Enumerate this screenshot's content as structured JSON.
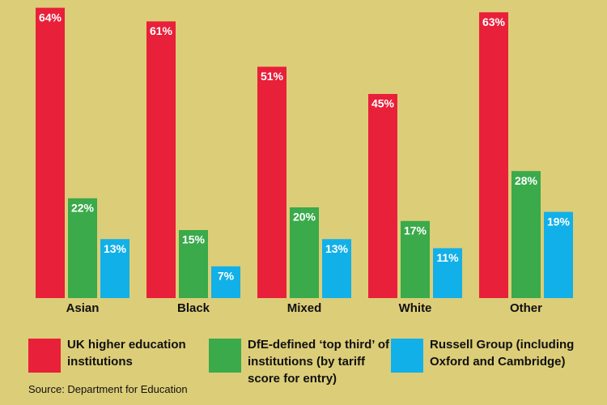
{
  "chart_data": {
    "type": "bar",
    "categories": [
      "Asian",
      "Black",
      "Mixed",
      "White",
      "Other"
    ],
    "series": [
      {
        "name": "UK higher education institutions",
        "color": "#e8203a",
        "values": [
          64,
          61,
          51,
          45,
          63
        ],
        "value_labels": [
          "64%",
          "61%",
          "51%",
          "45%",
          "63%"
        ]
      },
      {
        "name": "DfE-defined ‘top third’ of institutions (by tariff score for entry)",
        "color": "#3aaa4a",
        "values": [
          22,
          15,
          20,
          17,
          28
        ],
        "value_labels": [
          "22%",
          "15%",
          "20%",
          "17%",
          "28%"
        ]
      },
      {
        "name": "Russell Group (including Oxford and Cambridge)",
        "color": "#12b0e8",
        "values": [
          13,
          7,
          13,
          11,
          19
        ],
        "value_labels": [
          "13%",
          "7%",
          "13%",
          "11%",
          "19%"
        ]
      }
    ],
    "source": "Source: Department for Education"
  }
}
